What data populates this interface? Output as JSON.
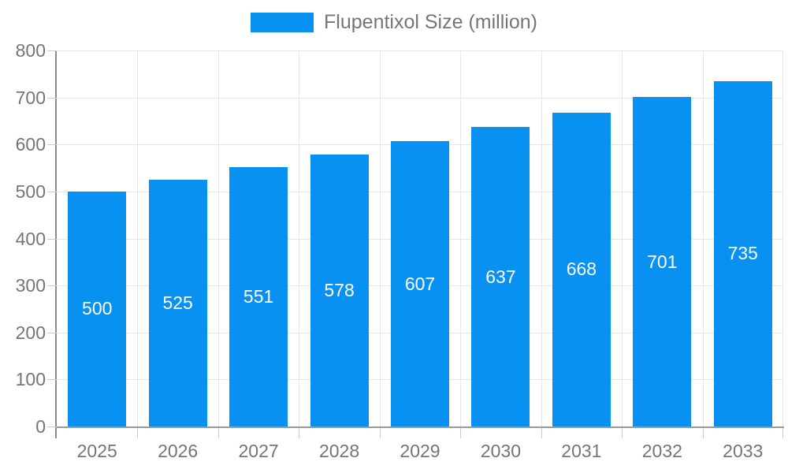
{
  "legend": {
    "label": "Flupentixol Size (million)"
  },
  "chart_data": {
    "type": "bar",
    "title": "",
    "xlabel": "",
    "ylabel": "",
    "categories": [
      "2025",
      "2026",
      "2027",
      "2028",
      "2029",
      "2030",
      "2031",
      "2032",
      "2033"
    ],
    "series": [
      {
        "name": "Flupentixol Size (million)",
        "values": [
          500,
          525,
          551,
          578,
          607,
          637,
          668,
          701,
          735
        ]
      }
    ],
    "bar_value_labels": [
      "500",
      "525",
      "551",
      "578",
      "607",
      "637",
      "668",
      "701",
      "735"
    ],
    "ylim": [
      0,
      800
    ],
    "ytick_step": 100,
    "yticks": [
      0,
      100,
      200,
      300,
      400,
      500,
      600,
      700,
      800
    ],
    "grid": true,
    "legend_position": "top"
  },
  "colors": {
    "bar": "#0991f2",
    "bar_label": "#ffffff",
    "axis_line": "#999999",
    "gridline": "#e6e6e6",
    "tick": "#cccccc",
    "axis_text": "#757575",
    "background": "#ffffff"
  }
}
